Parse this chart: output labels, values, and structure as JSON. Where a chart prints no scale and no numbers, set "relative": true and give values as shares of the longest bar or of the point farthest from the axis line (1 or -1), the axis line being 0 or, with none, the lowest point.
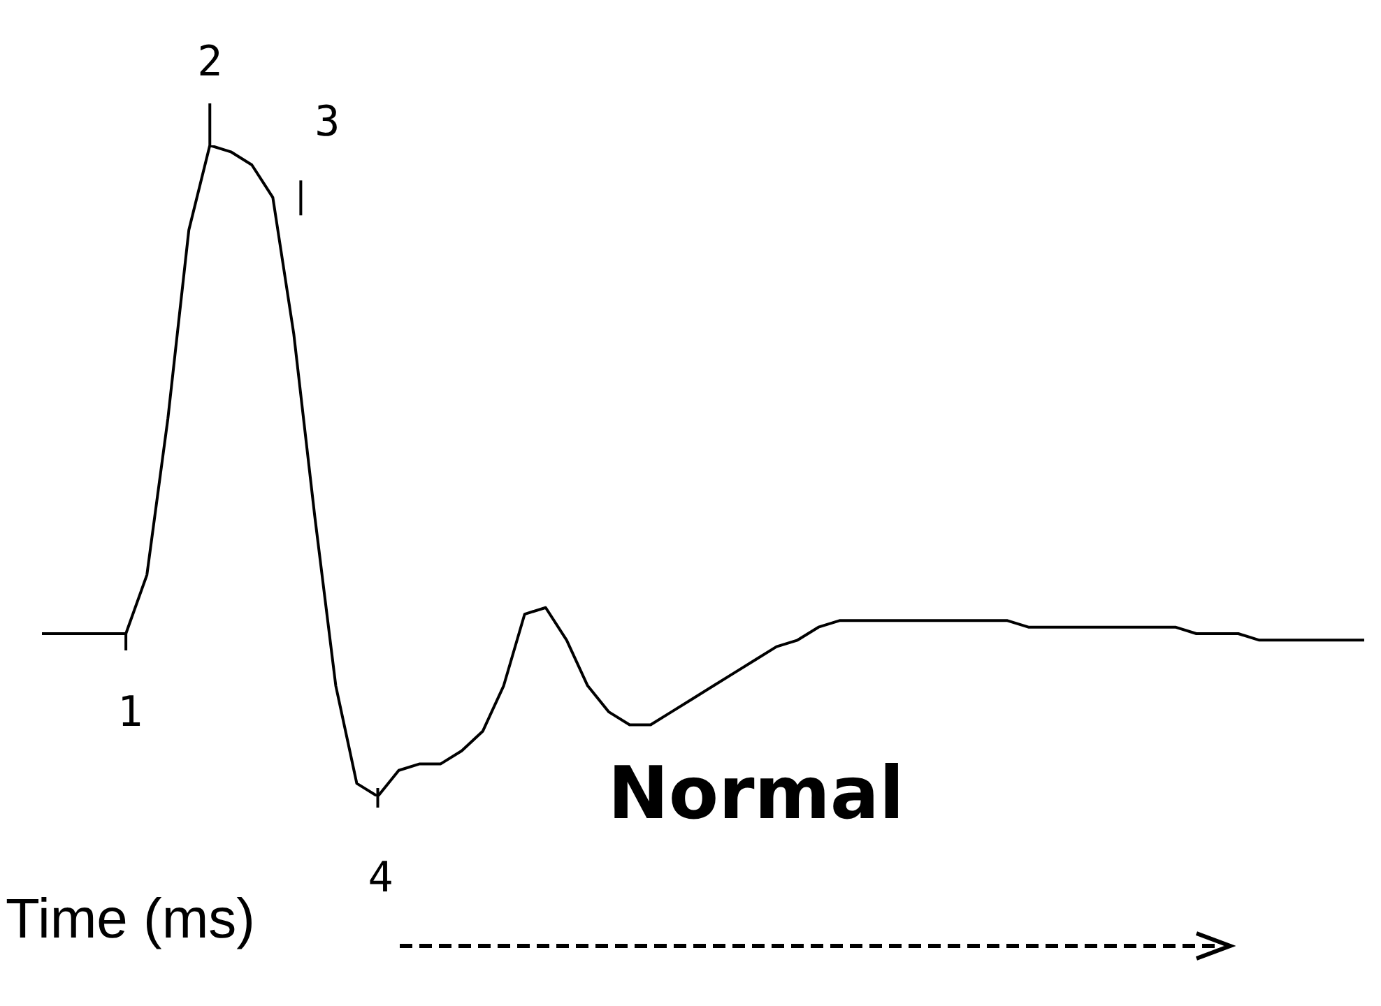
{
  "chart_data": {
    "type": "line",
    "relative": true,
    "xlabel": "Time (ms)",
    "annotations": [
      "1",
      "2",
      "3",
      "4",
      "Normal"
    ],
    "color": "#000000",
    "legend": false,
    "marker": "none",
    "line_style": "solid",
    "tick_labels": false,
    "categories": [
      null,
      null,
      null,
      null,
      null,
      null,
      null,
      null,
      null,
      null,
      null,
      null,
      null,
      null,
      null,
      null,
      null,
      null,
      null,
      null,
      null,
      null,
      null,
      null,
      null,
      null,
      null,
      null,
      null,
      null,
      null,
      null,
      null,
      null,
      null,
      null,
      null,
      null,
      null,
      null,
      null,
      null,
      null,
      null,
      null,
      null,
      null,
      null,
      null,
      null,
      null,
      null,
      null,
      null,
      null,
      null,
      null,
      null,
      null,
      null,
      null,
      null,
      null,
      null
    ],
    "values": [
      0.25,
      0.25,
      0.25,
      0.25,
      0.25,
      0.34,
      0.58,
      0.87,
      1,
      0.99,
      0.97,
      0.92,
      0.71,
      0.43,
      0.17,
      0.02,
      0,
      0.04,
      0.05,
      0.05,
      0.07,
      0.1,
      0.17,
      0.28,
      0.29,
      0.24,
      0.17,
      0.13,
      0.11,
      0.11,
      0.13,
      0.15,
      0.17,
      0.19,
      0.21,
      0.23,
      0.24,
      0.26,
      0.27,
      0.27,
      0.27,
      0.27,
      0.27,
      0.27,
      0.27,
      0.27,
      0.27,
      0.26,
      0.26,
      0.26,
      0.26,
      0.26,
      0.26,
      0.26,
      0.26,
      0.25,
      0.25,
      0.25,
      0.24,
      0.24,
      0.24,
      0.24,
      0.24,
      0.24
    ]
  }
}
